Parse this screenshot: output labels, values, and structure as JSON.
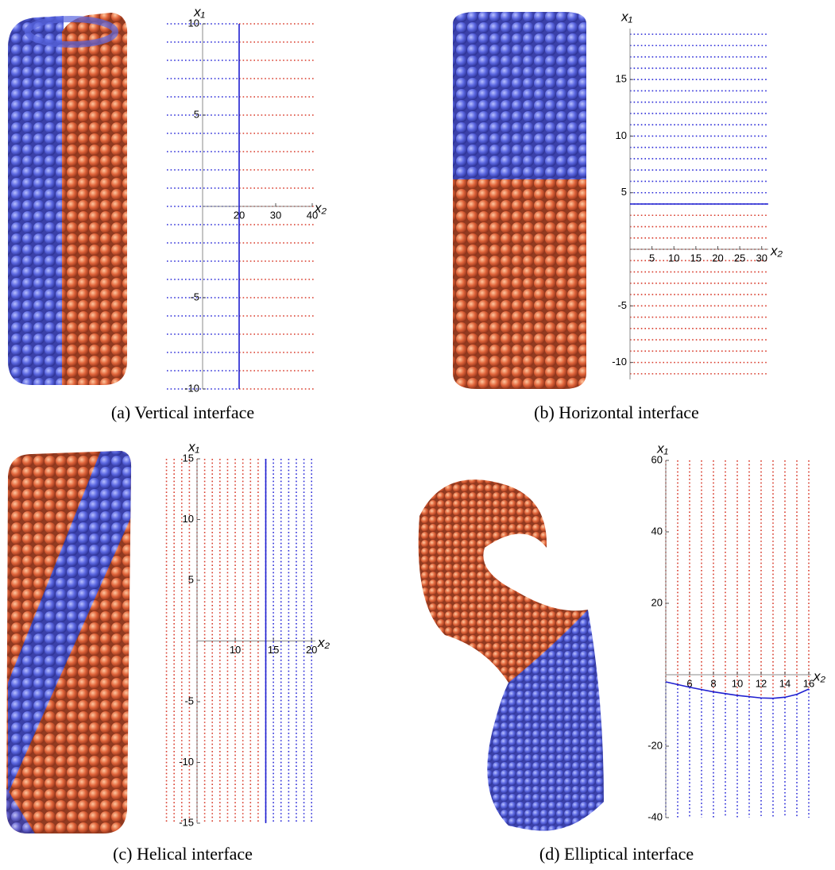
{
  "chart_data": [
    {
      "type": "line",
      "caption": "(a) Vertical interface",
      "x_label": "x₂",
      "y_label": "x₁",
      "xlim": [
        10,
        40
      ],
      "ylim": [
        -10,
        10
      ],
      "xticks": [
        20,
        30,
        40
      ],
      "yticks": [
        -10,
        -5,
        5,
        10
      ],
      "region_colors": [
        "#2a2ad8",
        "#d83a2a"
      ],
      "series": [
        {
          "color": "#1f1fd0",
          "x": [
            20,
            20
          ],
          "y": [
            -10,
            10
          ]
        }
      ]
    },
    {
      "type": "line",
      "caption": "(b) Horizontal interface",
      "x_label": "x₂",
      "y_label": "x₁",
      "xlim": [
        0,
        31.5
      ],
      "ylim": [
        -11.5,
        19.5
      ],
      "xticks": [
        5,
        10,
        15,
        20,
        25,
        30
      ],
      "yticks": [
        -10,
        -5,
        5,
        10,
        15
      ],
      "region_colors": [
        "#d83a2a",
        "#2a2ad8"
      ],
      "series": [
        {
          "color": "#1f1fd0",
          "x": [
            0,
            31.5
          ],
          "y": [
            4,
            4
          ]
        }
      ]
    },
    {
      "type": "line",
      "caption": "(c) Helical interface",
      "x_label": "x₂",
      "y_label": "x₁",
      "xlim": [
        5,
        20.5
      ],
      "ylim": [
        -15,
        15
      ],
      "xticks": [
        10,
        15,
        20
      ],
      "yticks": [
        -15,
        -10,
        -5,
        5,
        10,
        15
      ],
      "region_colors": [
        "#d83a2a",
        "#2a2ad8"
      ],
      "series": [
        {
          "color": "#1f1fd0",
          "x": [
            14,
            14
          ],
          "y": [
            -15,
            15
          ]
        }
      ]
    },
    {
      "type": "line",
      "caption": "(d) Elliptical interface",
      "x_label": "x₂",
      "y_label": "x₁",
      "xlim": [
        4,
        16.2
      ],
      "ylim": [
        -40,
        60
      ],
      "xticks": [
        6,
        8,
        10,
        12,
        14,
        16
      ],
      "yticks": [
        -40,
        -20,
        20,
        40,
        60
      ],
      "region_colors": [
        "#2a2ad8",
        "#d83a2a"
      ],
      "series": [
        {
          "color": "#1f1fd0",
          "x": [
            4,
            6,
            8,
            10,
            12,
            13,
            14,
            15,
            16
          ],
          "y": [
            -2,
            -3.5,
            -4.8,
            -5.8,
            -6.5,
            -6.6,
            -6.3,
            -5.5,
            -4
          ]
        }
      ]
    }
  ]
}
